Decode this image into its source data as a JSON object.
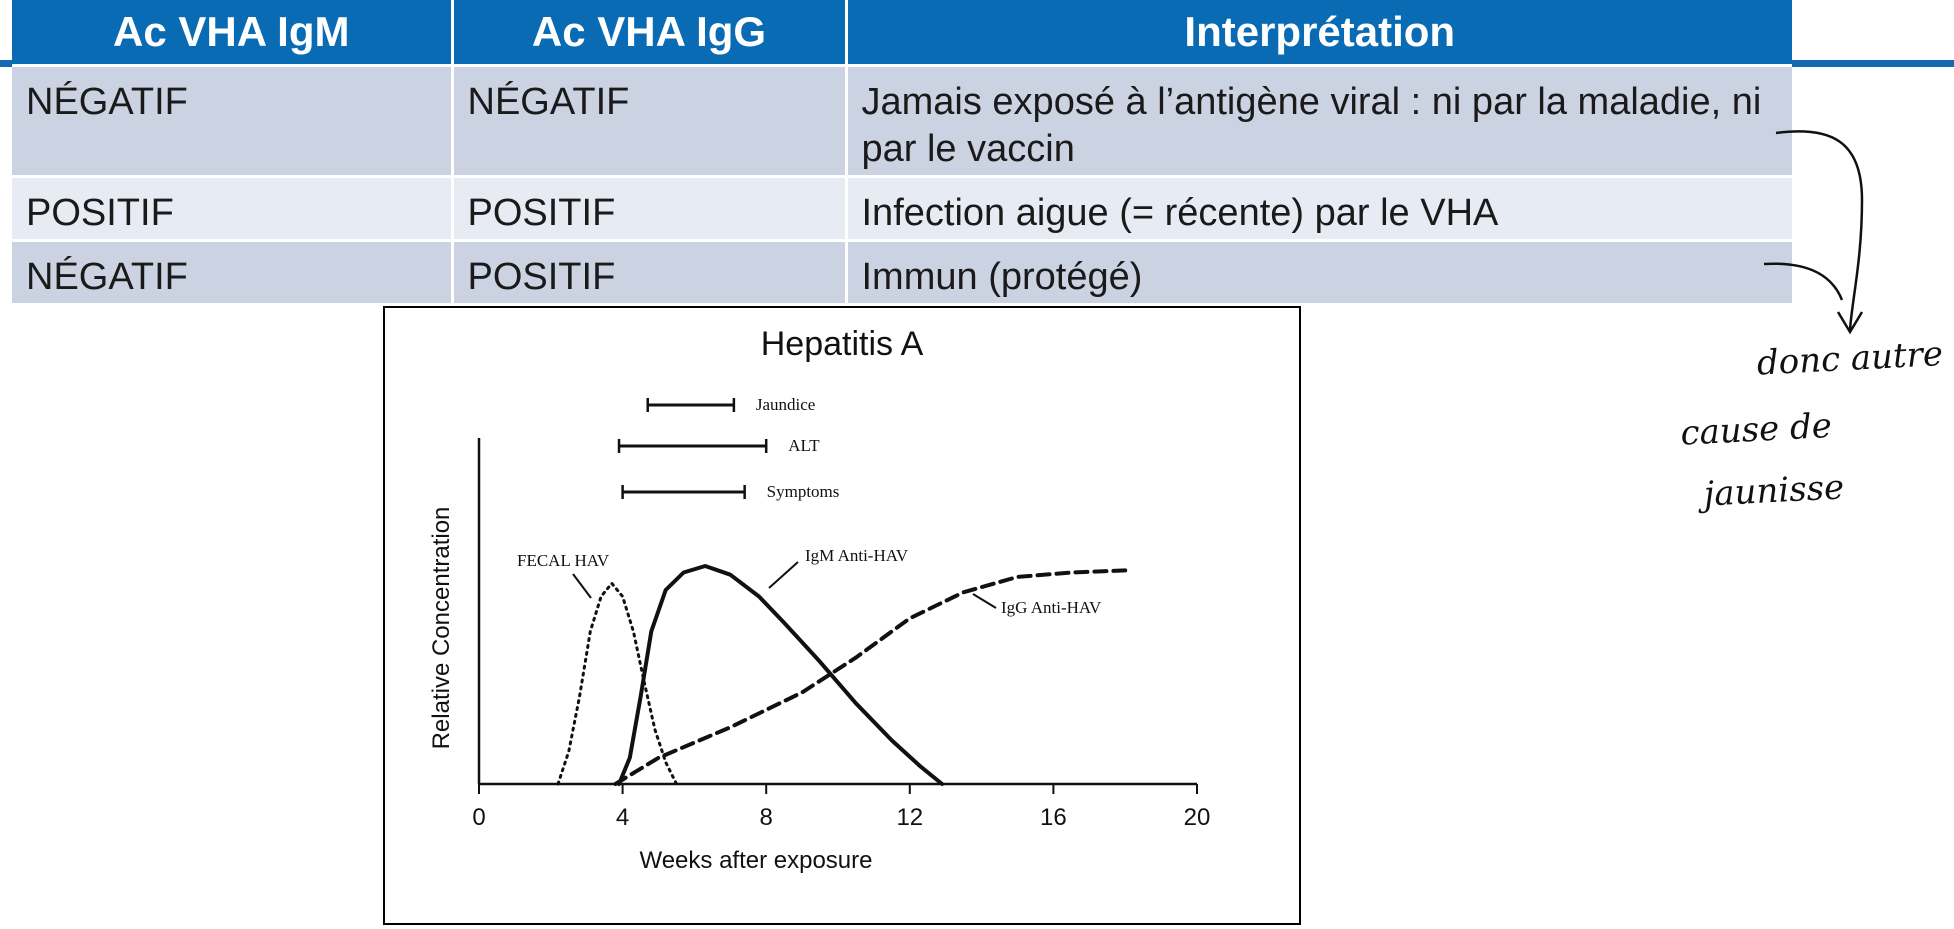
{
  "table": {
    "headers": [
      "Ac VHA IgM",
      "Ac VHA IgG",
      "Interprétation"
    ],
    "rows": [
      [
        "NÉGATIF",
        "NÉGATIF",
        "Jamais exposé à l’antigène viral : ni par la maladie, ni par le vaccin"
      ],
      [
        "POSITIF",
        "POSITIF",
        "Infection aigue (= récente) par le VHA"
      ],
      [
        "NÉGATIF",
        "POSITIF",
        "Immun (protégé)"
      ]
    ]
  },
  "chart_data": {
    "type": "line",
    "title": "Hepatitis A",
    "xlabel": "Weeks after exposure",
    "ylabel": "Relative Concentration",
    "xlim": [
      0,
      20
    ],
    "ylim": [
      0,
      1
    ],
    "xticks": [
      0,
      4,
      8,
      12,
      16,
      20
    ],
    "series": [
      {
        "name": "FECAL HAV",
        "style": "dotted",
        "points": [
          [
            2.2,
            0
          ],
          [
            2.5,
            0.15
          ],
          [
            2.8,
            0.4
          ],
          [
            3.1,
            0.7
          ],
          [
            3.4,
            0.86
          ],
          [
            3.7,
            0.92
          ],
          [
            4.0,
            0.86
          ],
          [
            4.3,
            0.7
          ],
          [
            4.6,
            0.47
          ],
          [
            4.9,
            0.25
          ],
          [
            5.2,
            0.1
          ],
          [
            5.5,
            0
          ]
        ]
      },
      {
        "name": "IgM Anti-HAV",
        "style": "solid",
        "points": [
          [
            3.9,
            0
          ],
          [
            4.2,
            0.12
          ],
          [
            4.5,
            0.4
          ],
          [
            4.8,
            0.7
          ],
          [
            5.2,
            0.89
          ],
          [
            5.7,
            0.97
          ],
          [
            6.3,
            1.0
          ],
          [
            7.0,
            0.96
          ],
          [
            7.8,
            0.86
          ],
          [
            8.5,
            0.74
          ],
          [
            9.5,
            0.56
          ],
          [
            10.5,
            0.37
          ],
          [
            11.5,
            0.2
          ],
          [
            12.3,
            0.08
          ],
          [
            12.9,
            0
          ]
        ]
      },
      {
        "name": "IgG Anti-HAV",
        "style": "dashed",
        "points": [
          [
            3.8,
            0
          ],
          [
            5,
            0.12
          ],
          [
            7,
            0.26
          ],
          [
            9,
            0.42
          ],
          [
            10.5,
            0.58
          ],
          [
            12,
            0.76
          ],
          [
            13.5,
            0.88
          ],
          [
            15,
            0.95
          ],
          [
            16.5,
            0.97
          ],
          [
            18,
            0.98
          ]
        ]
      }
    ],
    "ranges": [
      {
        "name": "Jaundice",
        "start": 4.7,
        "end": 7.1
      },
      {
        "name": "ALT",
        "start": 3.9,
        "end": 8.0
      },
      {
        "name": "Symptoms",
        "start": 4.0,
        "end": 7.4
      }
    ],
    "annotations": [
      "FECAL HAV",
      "IgM Anti-HAV",
      "IgG Anti-HAV"
    ]
  },
  "handwritten_note": "donc autre cause de jaunisse"
}
